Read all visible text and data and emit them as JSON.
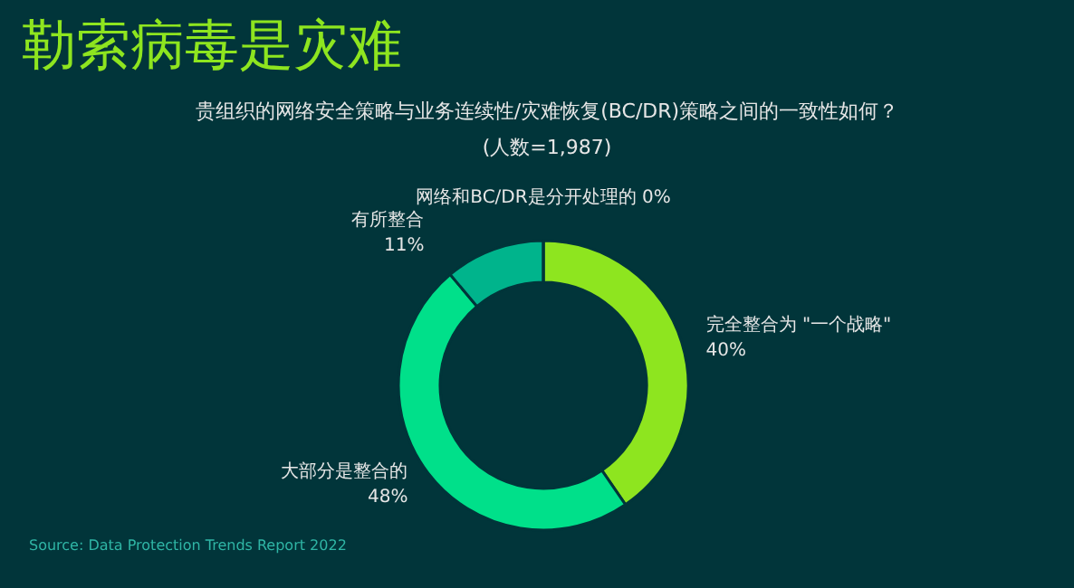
{
  "chart_data": {
    "type": "donut",
    "title": "勒索病毒是灾难",
    "subtitle": [
      "贵组织的网络安全策略与业务连续性/灾难恢复(BC/DR)策略之间的一致性如何？",
      "(人数=1,987)"
    ],
    "categories": [
      "完全整合为 \"一个战略\"",
      "大部分是整合的",
      "有所整合",
      "网络和BC/DR是分开处理的"
    ],
    "values": [
      40,
      48,
      11,
      0
    ],
    "value_labels": [
      "40%",
      "48%",
      "11%",
      "0%"
    ],
    "colors": [
      "#8ee51f",
      "#00e08a",
      "#00b48c",
      "#5a7a78"
    ],
    "annotations": [
      "Source: Data Protection Trends Report 2022"
    ]
  }
}
